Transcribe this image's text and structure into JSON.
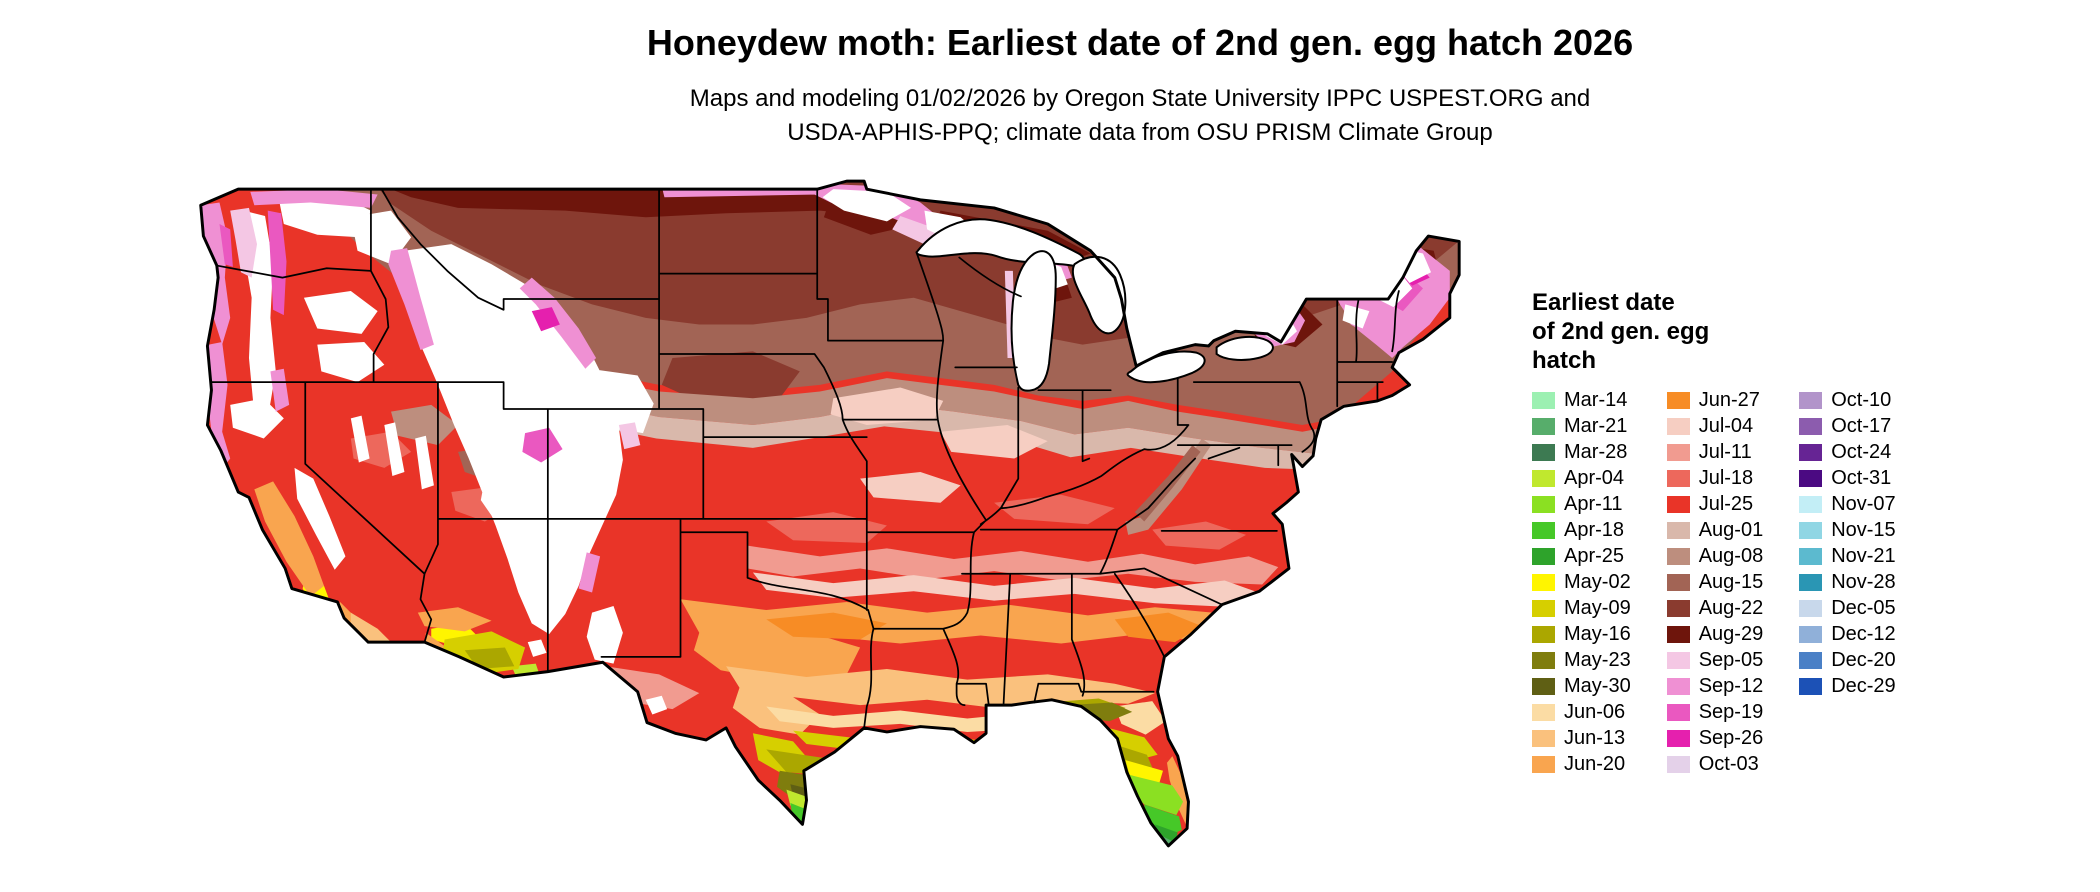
{
  "title": "Honeydew moth: Earliest date of 2nd gen. egg hatch 2026",
  "subtitle_lines": [
    "Maps and modeling 01/02/2026 by Oregon State University IPPC USPEST.ORG and",
    "USDA-APHIS-PPQ; climate data from OSU PRISM Climate Group"
  ],
  "legend": {
    "title_lines": [
      "Earliest date",
      "of 2nd gen. egg",
      "hatch"
    ],
    "columns": [
      {
        "items": [
          {
            "label": "Mar-14",
            "color": "#9CF0B2"
          },
          {
            "label": "Mar-21",
            "color": "#57AD6B"
          },
          {
            "label": "Mar-28",
            "color": "#3D7A52"
          },
          {
            "label": "Apr-04",
            "color": "#C0E82E"
          },
          {
            "label": "Apr-11",
            "color": "#8BE022"
          },
          {
            "label": "Apr-18",
            "color": "#46C828"
          },
          {
            "label": "Apr-25",
            "color": "#2EA32B"
          },
          {
            "label": "May-02",
            "color": "#FFF500"
          },
          {
            "label": "May-09",
            "color": "#D6CF00"
          },
          {
            "label": "May-16",
            "color": "#ABA700"
          },
          {
            "label": "May-23",
            "color": "#7F7D0E"
          },
          {
            "label": "May-30",
            "color": "#5F5F14"
          },
          {
            "label": "Jun-06",
            "color": "#FBDCA4"
          },
          {
            "label": "Jun-13",
            "color": "#FAC17D"
          },
          {
            "label": "Jun-20",
            "color": "#F9A54F"
          }
        ]
      },
      {
        "items": [
          {
            "label": "Jun-27",
            "color": "#F78C25"
          },
          {
            "label": "Jul-04",
            "color": "#F6CEC2"
          },
          {
            "label": "Jul-11",
            "color": "#F19B90"
          },
          {
            "label": "Jul-18",
            "color": "#ED685C"
          },
          {
            "label": "Jul-25",
            "color": "#E93428"
          },
          {
            "label": "Aug-01",
            "color": "#D9B8AB"
          },
          {
            "label": "Aug-08",
            "color": "#BD8E7E"
          },
          {
            "label": "Aug-15",
            "color": "#A26455"
          },
          {
            "label": "Aug-22",
            "color": "#8A3B2F"
          },
          {
            "label": "Aug-29",
            "color": "#6E150C"
          },
          {
            "label": "Sep-05",
            "color": "#F4C7E4"
          },
          {
            "label": "Sep-12",
            "color": "#EF90D3"
          },
          {
            "label": "Sep-19",
            "color": "#EA58C0"
          },
          {
            "label": "Sep-26",
            "color": "#E520AE"
          },
          {
            "label": "Oct-03",
            "color": "#E4D1E9"
          }
        ]
      },
      {
        "items": [
          {
            "label": "Oct-10",
            "color": "#B294CA"
          },
          {
            "label": "Oct-17",
            "color": "#8C5CAE"
          },
          {
            "label": "Oct-24",
            "color": "#662494"
          },
          {
            "label": "Oct-31",
            "color": "#4B0A82"
          },
          {
            "label": "Nov-07",
            "color": "#C3EEF6"
          },
          {
            "label": "Nov-15",
            "color": "#90D6E4"
          },
          {
            "label": "Nov-21",
            "color": "#5CBACF"
          },
          {
            "label": "Nov-28",
            "color": "#2A96B4"
          },
          {
            "label": "Dec-05",
            "color": "#C8D8EB"
          },
          {
            "label": "Dec-12",
            "color": "#90B0D9"
          },
          {
            "label": "Dec-20",
            "color": "#4A80C6"
          },
          {
            "label": "Dec-29",
            "color": "#1C51B6"
          }
        ]
      }
    ]
  },
  "map": {
    "no_data_color": "#ffffff",
    "border_color": "#000000"
  }
}
